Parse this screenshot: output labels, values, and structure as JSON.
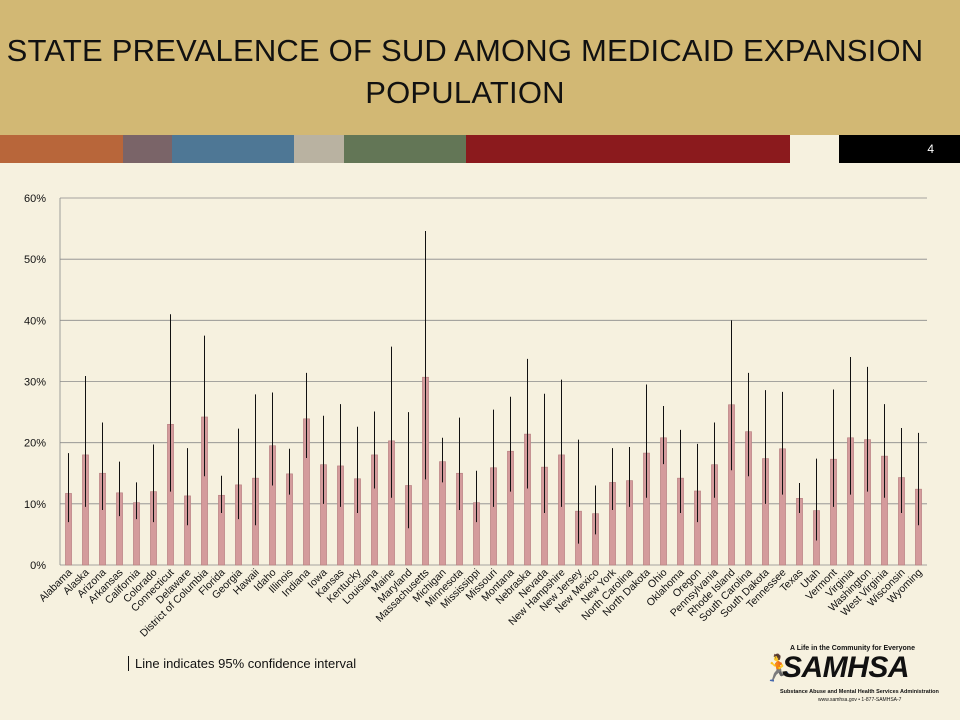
{
  "header": {
    "title_line1": "STATE PREVALENCE OF SUD AMONG MEDICAID EXPANSION",
    "title_line2": "POPULATION",
    "page_number": "4"
  },
  "colors": {
    "header_bg": "#d2b874",
    "bar_fill": "#d49b9c",
    "bar_stroke": "#b47c7d",
    "color_strip": [
      "#b8663a",
      "#7a6468",
      "#4e7795",
      "#b9b2a1",
      "#637656",
      "#8b1a1d",
      "#f6f1df"
    ]
  },
  "chart_data": {
    "type": "bar",
    "categories": [
      "Alabama",
      "Alaska",
      "Arizona",
      "Arkansas",
      "California",
      "Colorado",
      "Connecticut",
      "Delaware",
      "District of Columbia",
      "Florida",
      "Georgia",
      "Hawaii",
      "Idaho",
      "Illinois",
      "Indiana",
      "Iowa",
      "Kansas",
      "Kentucky",
      "Louisiana",
      "Maine",
      "Maryland",
      "Massachusetts",
      "Michigan",
      "Minnesota",
      "Mississippi",
      "Missouri",
      "Montana",
      "Nebraska",
      "Nevada",
      "New Hampshire",
      "New Jersey",
      "New Mexico",
      "New York",
      "North Carolina",
      "North Dakota",
      "Ohio",
      "Oklahoma",
      "Oregon",
      "Pennsylvania",
      "Rhode Island",
      "South Carolina",
      "South Dakota",
      "Tennessee",
      "Texas",
      "Utah",
      "Vermont",
      "Virginia",
      "Washington",
      "West Virginia",
      "Wisconsin",
      "Wyoming"
    ],
    "values": [
      11.7,
      18,
      15,
      11.8,
      10.2,
      12,
      23,
      11.3,
      24.2,
      11.4,
      13.1,
      14.2,
      19.5,
      14.9,
      23.9,
      16.4,
      16.2,
      14.1,
      18,
      20.3,
      13,
      30.7,
      16.9,
      15,
      10.2,
      15.9,
      18.6,
      21.4,
      16,
      18,
      8.8,
      8.4,
      13.5,
      13.8,
      18.3,
      20.8,
      14.2,
      12.1,
      16.4,
      26.2,
      21.8,
      17.4,
      19,
      10.9,
      8.9,
      17.3,
      20.8,
      20.5,
      17.8,
      14.3,
      12.4
    ],
    "ci_low": [
      7,
      9.5,
      9,
      8,
      7.5,
      7,
      12,
      6.5,
      14.5,
      8.5,
      7.5,
      6.5,
      13,
      11.5,
      17.5,
      10,
      9.5,
      8.5,
      12.5,
      11,
      6,
      14,
      13.5,
      9,
      7,
      9.5,
      12,
      12.5,
      8.5,
      9.5,
      3.5,
      5,
      9,
      9.5,
      11,
      16.5,
      8.5,
      7,
      11,
      15.5,
      14.5,
      10,
      11.5,
      8.5,
      4,
      9.5,
      11.5,
      12,
      11,
      8.5,
      6.5
    ],
    "ci_high": [
      18.3,
      30.9,
      23.3,
      16.9,
      13.5,
      19.7,
      41,
      19.1,
      37.5,
      14.6,
      22.3,
      27.9,
      28.2,
      19,
      31.4,
      24.4,
      26.3,
      22.6,
      25.1,
      35.7,
      25,
      54.6,
      20.8,
      24.1,
      15.4,
      25.4,
      27.5,
      33.7,
      28,
      30.3,
      20.5,
      13,
      19.1,
      19.3,
      29.5,
      26,
      22.1,
      19.8,
      23.3,
      40,
      31.4,
      28.6,
      28.3,
      13.4,
      17.4,
      28.7,
      34,
      32.4,
      26.3,
      22.4,
      21.6
    ],
    "ylim": [
      0,
      60
    ],
    "ytick_step": 10,
    "ytick_suffix": "%",
    "grid": true,
    "legend_note": "Line indicates 95% confidence interval"
  },
  "logo": {
    "tagline": "A Life in the Community for Everyone",
    "brand": "SAMHSA",
    "subtitle": "Substance Abuse and Mental Health Services Administration",
    "contact": "www.samhsa.gov • 1-877-SAMHSA-7"
  }
}
